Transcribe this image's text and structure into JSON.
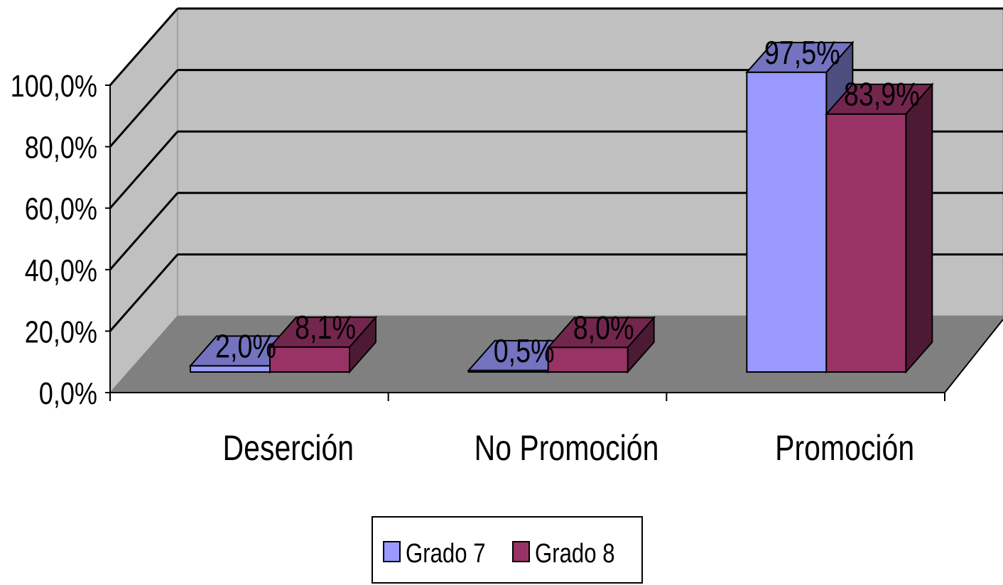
{
  "chart_data": {
    "type": "bar",
    "categories": [
      "Deserción",
      "No Promoción",
      "Promoción"
    ],
    "series": [
      {
        "name": "Grado 7",
        "values": [
          2.0,
          0.5,
          97.5
        ],
        "labels": [
          "2,0%",
          "0,5%",
          "97,5%"
        ],
        "color": "#9999ff"
      },
      {
        "name": "Grado 8",
        "values": [
          8.1,
          8.0,
          83.9
        ],
        "labels": [
          "8,1%",
          "8,0%",
          "83,9%"
        ],
        "color": "#993366"
      }
    ],
    "y_ticks": [
      "0,0%",
      "20,0%",
      "40,0%",
      "60,0%",
      "80,0%",
      "100,0%"
    ],
    "ylim": [
      0,
      100
    ],
    "grid": true,
    "three_d": true,
    "legend_position": "bottom",
    "colors": {
      "wall": "#c0c0c0",
      "floor": "#808080",
      "gridline": "#000000"
    }
  }
}
